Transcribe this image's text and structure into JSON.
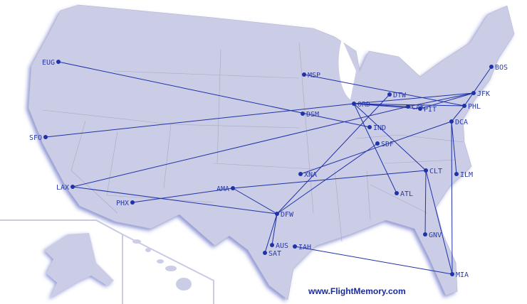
{
  "map": {
    "type": "flight route map",
    "colors": {
      "land": "#cbcde6",
      "shadow": "#8f96d6",
      "route": "#1f32a6",
      "label": "#2a3aa8",
      "border": "#a8aac0"
    },
    "airports": [
      "EUG",
      "MSP",
      "DTW",
      "ORD",
      "CAK",
      "PIT",
      "BOS",
      "JFK",
      "PHL",
      "DCA",
      "DSM",
      "IND",
      "SDF",
      "SFO",
      "XNA",
      "CLT",
      "ILM",
      "ATL",
      "LAX",
      "AMA",
      "PHX",
      "DFW",
      "GNV",
      "AUS",
      "SAT",
      "IAH",
      "MIA"
    ],
    "routes": [
      [
        "EUG",
        "IND"
      ],
      [
        "SFO",
        "ORD"
      ],
      [
        "LAX",
        "CAK"
      ],
      [
        "LAX",
        "DFW"
      ],
      [
        "PHX",
        "AMA"
      ],
      [
        "AMA",
        "CLT"
      ],
      [
        "AMA",
        "DFW"
      ],
      [
        "DFW",
        "AUS"
      ],
      [
        "DFW",
        "SAT"
      ],
      [
        "DFW",
        "DTW"
      ],
      [
        "DFW",
        "SDF"
      ],
      [
        "XNA",
        "DCA"
      ],
      [
        "ORD",
        "ATL"
      ],
      [
        "ORD",
        "CLT"
      ],
      [
        "ORD",
        "PHL"
      ],
      [
        "ORD",
        "JFK"
      ],
      [
        "ORD",
        "CAK"
      ],
      [
        "ORD",
        "PIT"
      ],
      [
        "MSP",
        "PHL"
      ],
      [
        "CAK",
        "JFK"
      ],
      [
        "PIT",
        "JFK"
      ],
      [
        "BOS",
        "PHL"
      ],
      [
        "PHL",
        "DCA"
      ],
      [
        "DCA",
        "MIA"
      ],
      [
        "DCA",
        "ILM"
      ],
      [
        "CLT",
        "GNV"
      ],
      [
        "CLT",
        "MIA"
      ],
      [
        "IAH",
        "MIA"
      ]
    ]
  },
  "footer": {
    "brand": "www.FlightMemory.com"
  }
}
